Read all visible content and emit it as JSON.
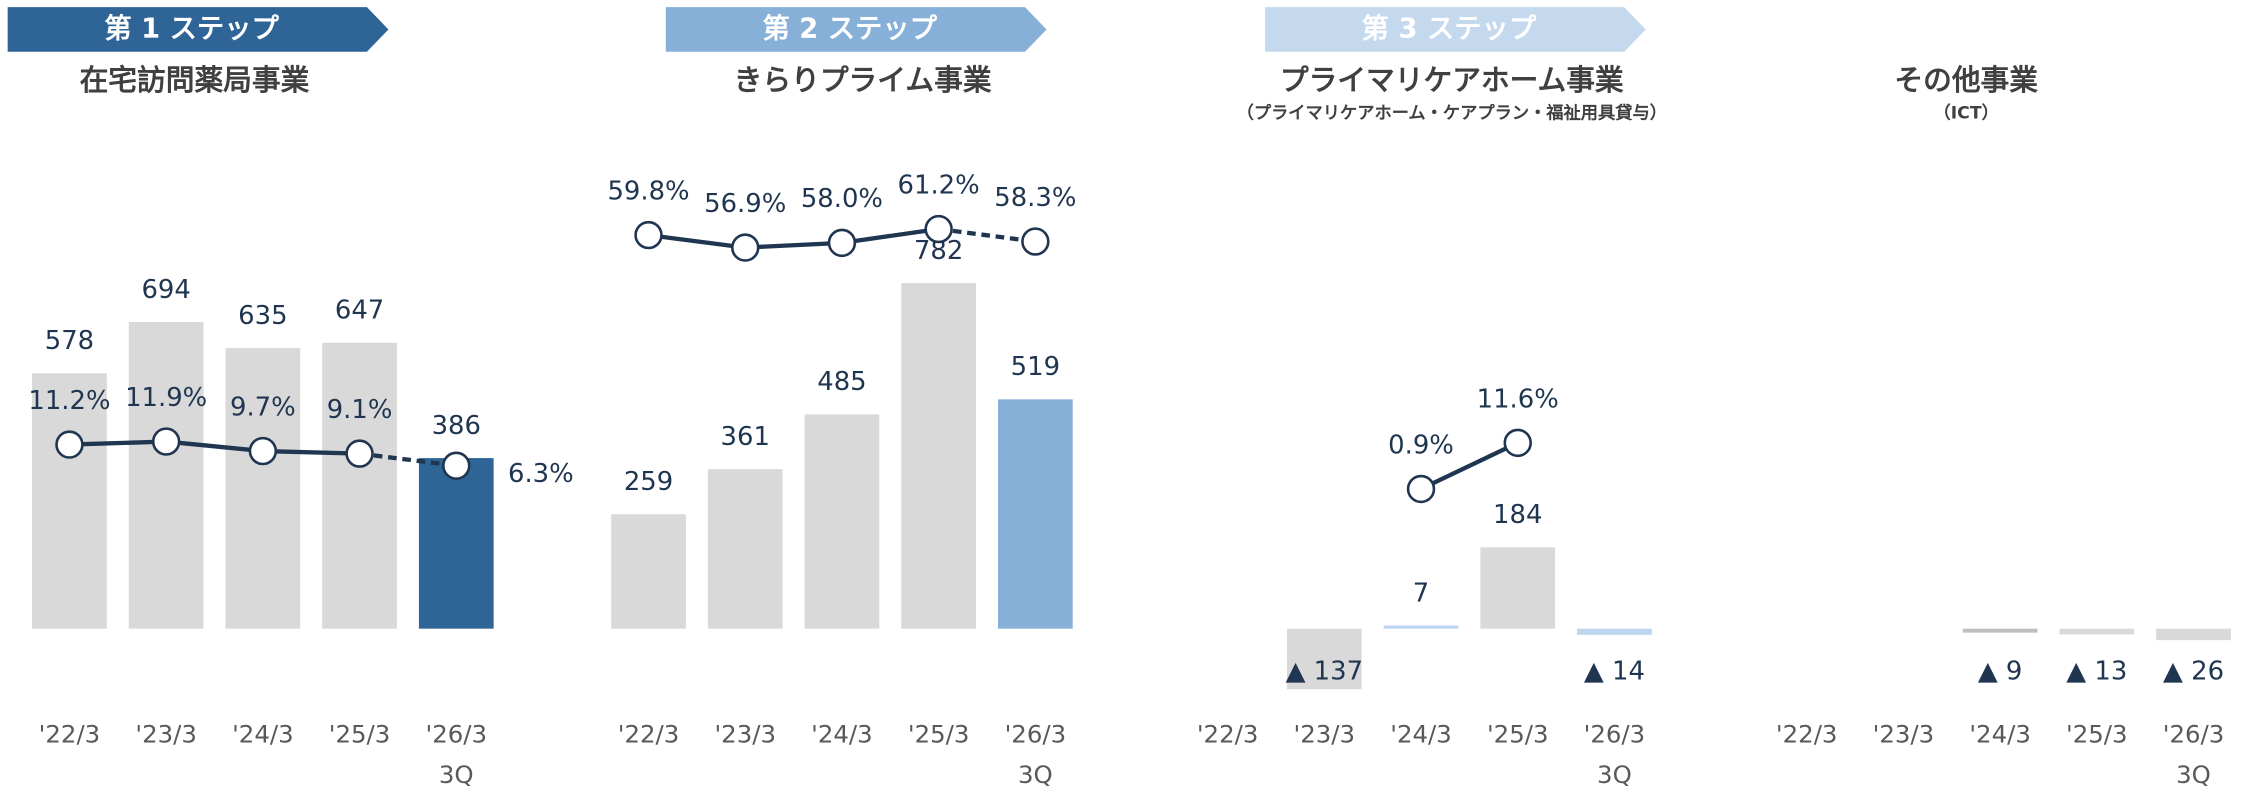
{
  "chart_data": [
    {
      "type": "bar-line",
      "step": "第 1 ステップ",
      "step_color": "#2e6496",
      "title": "在宅訪問薬局事業",
      "categories": [
        "'22/3",
        "'23/3",
        "'24/3",
        "'25/3",
        "'26/3\n3Q"
      ],
      "ylim": [
        -200,
        1000
      ],
      "y2lim": [
        -52,
        71
      ],
      "series": [
        {
          "type": "bar",
          "values": [
            578,
            694,
            635,
            647,
            386
          ],
          "value_labels": [
            "578",
            "694",
            "635",
            "647",
            "386"
          ],
          "colors": [
            "#d9d9d9",
            "#d9d9d9",
            "#d9d9d9",
            "#d9d9d9",
            "#2e6496"
          ]
        },
        {
          "type": "line",
          "axis": "y2",
          "values": [
            11.2,
            11.9,
            9.7,
            9.1,
            6.3
          ],
          "value_labels": [
            "11.2%",
            "11.9%",
            "9.7%",
            "9.1%",
            "6.3%"
          ],
          "color": "#1f3550",
          "dashed_last_segment": true
        }
      ]
    },
    {
      "type": "bar-line",
      "step": "第 2 ステップ",
      "step_color": "#87b0d8",
      "title": "きらりプライム事業",
      "categories": [
        "'22/3",
        "'23/3",
        "'24/3",
        "'25/3",
        "'26/3\n3Q"
      ],
      "ylim": [
        -200,
        1000
      ],
      "y2lim": [
        -52,
        71
      ],
      "series": [
        {
          "type": "bar",
          "values": [
            259,
            361,
            485,
            782,
            519
          ],
          "value_labels": [
            "259",
            "361",
            "485",
            "782",
            "519"
          ],
          "colors": [
            "#d9d9d9",
            "#d9d9d9",
            "#d9d9d9",
            "#d9d9d9",
            "#87b0d8"
          ]
        },
        {
          "type": "line",
          "axis": "y2",
          "values": [
            59.8,
            56.9,
            58.0,
            61.2,
            58.3
          ],
          "value_labels": [
            "59.8%",
            "56.9%",
            "58.0%",
            "61.2%",
            "58.3%"
          ],
          "color": "#1f3550",
          "dashed_last_segment": true
        }
      ]
    },
    {
      "type": "bar-line",
      "step": "第 3 ステップ",
      "step_color": "#c5d9ee",
      "title": "プライマリケアホーム事業",
      "subtitle": "（プライマリケアホーム・ケアプラン・福祉用具貸与）",
      "categories": [
        "'22/3",
        "'23/3",
        "'24/3",
        "'25/3",
        "'26/3\n3Q"
      ],
      "ylim": [
        -200,
        1000
      ],
      "y2lim": [
        -52,
        71
      ],
      "series": [
        {
          "type": "bar",
          "values": [
            null,
            -137,
            7,
            184,
            -14
          ],
          "value_labels": [
            null,
            "▲ 137",
            "7",
            "184",
            "▲ 14"
          ],
          "colors": [
            null,
            "#d9d9d9",
            "#bdd5ee",
            "#d9d9d9",
            "#bdd5ee"
          ]
        },
        {
          "type": "line",
          "axis": "y2",
          "values": [
            null,
            null,
            0.9,
            11.6,
            null
          ],
          "value_labels": [
            null,
            null,
            "0.9%",
            "11.6%",
            null
          ],
          "color": "#1f3550",
          "dashed_last_segment": false
        }
      ]
    },
    {
      "type": "bar",
      "title": "その他事業",
      "subtitle": "（ICT）",
      "categories": [
        "'22/3",
        "'23/3",
        "'24/3",
        "'25/3",
        "'26/3\n3Q"
      ],
      "ylim": [
        -200,
        1000
      ],
      "series": [
        {
          "type": "bar",
          "values": [
            null,
            null,
            -9,
            -13,
            -26
          ],
          "value_labels": [
            null,
            null,
            "▲ 9",
            "▲ 13",
            "▲ 26"
          ],
          "colors": [
            null,
            null,
            "#bfbfbf",
            "#d9d9d9",
            "#d9d9d9"
          ]
        }
      ]
    }
  ]
}
